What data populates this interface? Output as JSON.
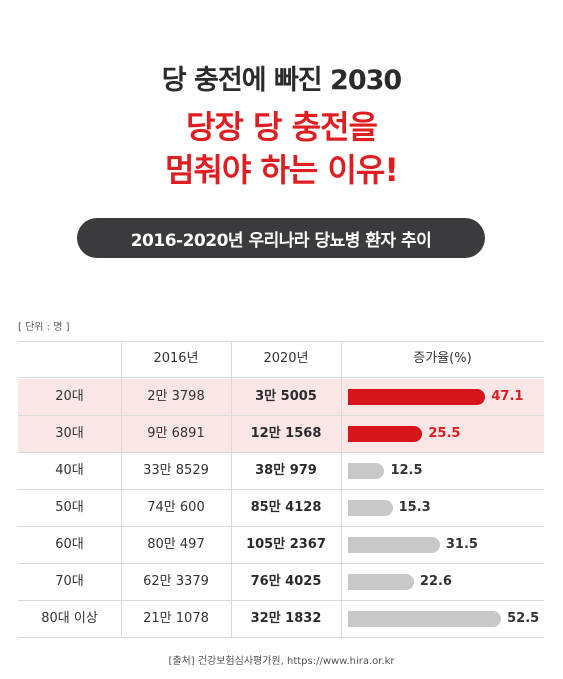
{
  "title": {
    "line1": "당 충전에 빠진 2030",
    "line2": "당장 당 충전을",
    "line3": "멈춰야 하는 이유!"
  },
  "subtitle": "2016-2020년 우리나라 당뇨병 환자 추이",
  "unit_note": "[ 단위 : 명 ]",
  "source": "[출처] 건강보험심사평가원, https://www.hira.or.kr",
  "colors": {
    "accent": "#e01e22",
    "highlight_bar": "#d7141a",
    "normal_bar": "#c8c8c8",
    "highlight_row": "#fbe6e7"
  },
  "chart_data": {
    "type": "table",
    "columns": [
      "",
      "2016년",
      "2020년",
      "증가율(%)"
    ],
    "rows": [
      {
        "age": "20대",
        "y2016": "2만 3798",
        "y2020": "3만 5005",
        "growth": 47.1,
        "growth_label": "47.1",
        "highlight": true
      },
      {
        "age": "30대",
        "y2016": "9만 6891",
        "y2020": "12만 1568",
        "growth": 25.5,
        "growth_label": "25.5",
        "highlight": true
      },
      {
        "age": "40대",
        "y2016": "33만 8529",
        "y2020": "38만 979",
        "growth": 12.5,
        "growth_label": "12.5",
        "highlight": false
      },
      {
        "age": "50대",
        "y2016": "74만 600",
        "y2020": "85만 4128",
        "growth": 15.3,
        "growth_label": "15.3",
        "highlight": false
      },
      {
        "age": "60대",
        "y2016": "80만 497",
        "y2020": "105만 2367",
        "growth": 31.5,
        "growth_label": "31.5",
        "highlight": false
      },
      {
        "age": "70대",
        "y2016": "62만 3379",
        "y2020": "76만 4025",
        "growth": 22.6,
        "growth_label": "22.6",
        "highlight": false
      },
      {
        "age": "80대 이상",
        "y2016": "21만 1078",
        "y2020": "32만 1832",
        "growth": 52.5,
        "growth_label": "52.5",
        "highlight": false
      }
    ]
  }
}
